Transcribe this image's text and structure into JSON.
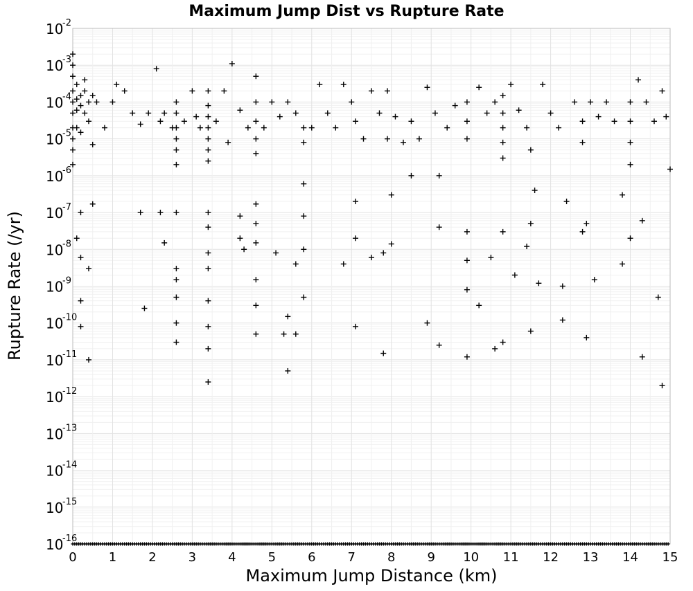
{
  "chart_data": {
    "type": "scatter",
    "title": "Maximum Jump Dist vs Rupture Rate",
    "xlabel": "Maximum Jump Distance (km)",
    "ylabel": "Rupture Rate (/yr)",
    "xlim": [
      0,
      15
    ],
    "ylim": [
      1e-16,
      0.01
    ],
    "yscale": "log",
    "grid": true,
    "x_ticks": [
      "0",
      "1",
      "2",
      "3",
      "4",
      "5",
      "6",
      "7",
      "8",
      "9",
      "10",
      "11",
      "12",
      "13",
      "14",
      "15"
    ],
    "y_ticks": [
      {
        "base": "10",
        "exp": "-2"
      },
      {
        "base": "10",
        "exp": "-3"
      },
      {
        "base": "10",
        "exp": "-4"
      },
      {
        "base": "10",
        "exp": "-5"
      },
      {
        "base": "10",
        "exp": "-6"
      },
      {
        "base": "10",
        "exp": "-7"
      },
      {
        "base": "10",
        "exp": "-8"
      },
      {
        "base": "10",
        "exp": "-9"
      },
      {
        "base": "10",
        "exp": "-10"
      },
      {
        "base": "10",
        "exp": "-11"
      },
      {
        "base": "10",
        "exp": "-12"
      },
      {
        "base": "10",
        "exp": "-13"
      },
      {
        "base": "10",
        "exp": "-14"
      },
      {
        "base": "10",
        "exp": "-15"
      },
      {
        "base": "10",
        "exp": "-16"
      }
    ],
    "marker": "+",
    "marker_color": "#000000",
    "series": [
      {
        "points": [
          [
            0,
            0.002
          ],
          [
            0,
            0.001
          ],
          [
            0,
            0.0005
          ],
          [
            0,
            0.0002
          ],
          [
            0,
            0.0001
          ],
          [
            0,
            5e-05
          ],
          [
            0,
            2e-05
          ],
          [
            0,
            1e-05
          ],
          [
            0,
            5e-06
          ],
          [
            0,
            2e-06
          ],
          [
            0.1,
            0.0003
          ],
          [
            0.1,
            0.00012
          ],
          [
            0.1,
            6e-05
          ],
          [
            0.1,
            2e-05
          ],
          [
            0.2,
            0.00015
          ],
          [
            0.2,
            8e-05
          ],
          [
            0.2,
            1.5e-05
          ],
          [
            0.3,
            0.0004
          ],
          [
            0.3,
            0.0002
          ],
          [
            0.3,
            5e-05
          ],
          [
            0.4,
            0.0001
          ],
          [
            0.4,
            3e-05
          ],
          [
            0.5,
            0.00015
          ],
          [
            0.5,
            7e-06
          ],
          [
            0.6,
            0.0001
          ],
          [
            0.8,
            2e-05
          ],
          [
            1.0,
            0.0001
          ],
          [
            1.1,
            0.0003
          ],
          [
            1.3,
            0.0002
          ],
          [
            1.5,
            5e-05
          ],
          [
            1.7,
            2.5e-05
          ],
          [
            1.9,
            5e-05
          ],
          [
            2.1,
            0.0008
          ],
          [
            2.2,
            3e-05
          ],
          [
            2.3,
            5e-05
          ],
          [
            2.5,
            2e-05
          ],
          [
            2.6,
            0.0001
          ],
          [
            2.6,
            5e-05
          ],
          [
            2.6,
            2e-05
          ],
          [
            2.6,
            1e-05
          ],
          [
            2.6,
            5e-06
          ],
          [
            2.6,
            2e-06
          ],
          [
            2.8,
            3e-05
          ],
          [
            3.0,
            0.0002
          ],
          [
            3.1,
            4e-05
          ],
          [
            3.2,
            2e-05
          ],
          [
            3.4,
            0.0002
          ],
          [
            3.4,
            8e-05
          ],
          [
            3.4,
            4e-05
          ],
          [
            3.4,
            2e-05
          ],
          [
            3.4,
            1e-05
          ],
          [
            3.4,
            5e-06
          ],
          [
            3.4,
            2.5e-06
          ],
          [
            3.6,
            3e-05
          ],
          [
            3.8,
            0.0002
          ],
          [
            3.9,
            8e-06
          ],
          [
            4.0,
            0.0011
          ],
          [
            4.2,
            6e-05
          ],
          [
            4.4,
            2e-05
          ],
          [
            4.6,
            0.0005
          ],
          [
            4.6,
            0.0001
          ],
          [
            4.6,
            3e-05
          ],
          [
            4.6,
            1e-05
          ],
          [
            4.6,
            4e-06
          ],
          [
            4.8,
            2e-05
          ],
          [
            5.0,
            0.0001
          ],
          [
            5.2,
            4e-05
          ],
          [
            5.4,
            0.0001
          ],
          [
            5.6,
            5e-05
          ],
          [
            5.8,
            2e-05
          ],
          [
            5.8,
            8e-06
          ],
          [
            5.8,
            6e-07
          ],
          [
            6.0,
            2e-05
          ],
          [
            6.2,
            0.0003
          ],
          [
            6.4,
            5e-05
          ],
          [
            6.6,
            2e-05
          ],
          [
            6.8,
            0.0003
          ],
          [
            7.0,
            0.0001
          ],
          [
            7.1,
            3e-05
          ],
          [
            7.3,
            1e-05
          ],
          [
            7.5,
            0.0002
          ],
          [
            7.7,
            5e-05
          ],
          [
            7.9,
            0.0002
          ],
          [
            7.9,
            1e-05
          ],
          [
            8.1,
            4e-05
          ],
          [
            8.3,
            8e-06
          ],
          [
            8.5,
            3e-05
          ],
          [
            8.5,
            1e-06
          ],
          [
            8.7,
            1e-05
          ],
          [
            8.9,
            0.00025
          ],
          [
            9.1,
            5e-05
          ],
          [
            9.2,
            1e-06
          ],
          [
            9.4,
            2e-05
          ],
          [
            9.6,
            8e-05
          ],
          [
            9.9,
            0.0001
          ],
          [
            9.9,
            3e-05
          ],
          [
            9.9,
            1e-05
          ],
          [
            10.2,
            0.00025
          ],
          [
            10.4,
            5e-05
          ],
          [
            10.6,
            0.0001
          ],
          [
            10.8,
            0.00015
          ],
          [
            10.8,
            5e-05
          ],
          [
            10.8,
            2e-05
          ],
          [
            10.8,
            8e-06
          ],
          [
            10.8,
            3e-06
          ],
          [
            11.0,
            0.0003
          ],
          [
            11.2,
            6e-05
          ],
          [
            11.4,
            2e-05
          ],
          [
            11.5,
            5e-06
          ],
          [
            11.6,
            4e-07
          ],
          [
            11.8,
            0.0003
          ],
          [
            12.0,
            5e-05
          ],
          [
            12.2,
            2e-05
          ],
          [
            12.4,
            2e-07
          ],
          [
            12.6,
            0.0001
          ],
          [
            12.8,
            3e-05
          ],
          [
            12.8,
            8e-06
          ],
          [
            13.0,
            0.0001
          ],
          [
            13.2,
            4e-05
          ],
          [
            13.4,
            0.0001
          ],
          [
            13.6,
            3e-05
          ],
          [
            13.8,
            3e-07
          ],
          [
            14.0,
            0.0001
          ],
          [
            14.0,
            3e-05
          ],
          [
            14.0,
            8e-06
          ],
          [
            14.0,
            2e-06
          ],
          [
            14.2,
            0.0004
          ],
          [
            14.4,
            0.0001
          ],
          [
            14.6,
            3e-05
          ],
          [
            14.8,
            0.0002
          ],
          [
            14.9,
            4e-05
          ],
          [
            15.0,
            1.5e-06
          ],
          [
            0.2,
            1e-07
          ],
          [
            0.5,
            1.7e-07
          ],
          [
            1.7,
            1e-07
          ],
          [
            2.2,
            1e-07
          ],
          [
            2.6,
            1e-07
          ],
          [
            3.4,
            1e-07
          ],
          [
            4.2,
            8e-08
          ],
          [
            4.6,
            1.7e-07
          ],
          [
            4.6,
            5e-08
          ],
          [
            5.8,
            8e-08
          ],
          [
            7.1,
            2e-07
          ],
          [
            8.0,
            3e-07
          ],
          [
            11.5,
            5e-08
          ],
          [
            12.9,
            5e-08
          ],
          [
            14.3,
            6e-08
          ],
          [
            0.1,
            2e-08
          ],
          [
            0.2,
            6e-09
          ],
          [
            0.4,
            3e-09
          ],
          [
            2.3,
            1.5e-08
          ],
          [
            2.6,
            3e-09
          ],
          [
            2.6,
            1.5e-09
          ],
          [
            3.4,
            4e-08
          ],
          [
            3.4,
            8e-09
          ],
          [
            3.4,
            3e-09
          ],
          [
            4.2,
            2e-08
          ],
          [
            4.3,
            1e-08
          ],
          [
            4.6,
            1.5e-08
          ],
          [
            4.6,
            1.5e-09
          ],
          [
            5.1,
            8e-09
          ],
          [
            5.6,
            4e-09
          ],
          [
            5.8,
            1e-08
          ],
          [
            6.8,
            4e-09
          ],
          [
            7.1,
            2e-08
          ],
          [
            7.5,
            6e-09
          ],
          [
            7.8,
            8e-09
          ],
          [
            8.0,
            1.4e-08
          ],
          [
            9.2,
            4e-08
          ],
          [
            9.9,
            3e-08
          ],
          [
            9.9,
            5e-09
          ],
          [
            10.5,
            6e-09
          ],
          [
            10.8,
            3e-08
          ],
          [
            11.1,
            2e-09
          ],
          [
            11.4,
            1.2e-08
          ],
          [
            11.7,
            1.2e-09
          ],
          [
            12.3,
            1e-09
          ],
          [
            12.8,
            3e-08
          ],
          [
            13.1,
            1.5e-09
          ],
          [
            13.8,
            4e-09
          ],
          [
            14.0,
            2e-08
          ],
          [
            0.2,
            4e-10
          ],
          [
            0.2,
            8e-11
          ],
          [
            1.8,
            2.5e-10
          ],
          [
            2.6,
            5e-10
          ],
          [
            2.6,
            1e-10
          ],
          [
            2.6,
            3e-11
          ],
          [
            3.4,
            4e-10
          ],
          [
            3.4,
            8e-11
          ],
          [
            3.4,
            2e-11
          ],
          [
            4.6,
            3e-10
          ],
          [
            4.6,
            5e-11
          ],
          [
            5.3,
            5e-11
          ],
          [
            5.4,
            1.5e-10
          ],
          [
            5.6,
            5e-11
          ],
          [
            5.8,
            5e-10
          ],
          [
            7.1,
            8e-11
          ],
          [
            8.9,
            1e-10
          ],
          [
            9.2,
            2.5e-11
          ],
          [
            9.9,
            8e-10
          ],
          [
            10.2,
            3e-10
          ],
          [
            10.6,
            2e-11
          ],
          [
            10.8,
            3e-11
          ],
          [
            11.5,
            6e-11
          ],
          [
            12.3,
            1.2e-10
          ],
          [
            12.9,
            4e-11
          ],
          [
            14.7,
            5e-10
          ],
          [
            0.4,
            1e-11
          ],
          [
            3.4,
            2.5e-12
          ],
          [
            5.4,
            5e-12
          ],
          [
            7.8,
            1.5e-11
          ],
          [
            9.9,
            1.2e-11
          ],
          [
            14.3,
            1.2e-11
          ],
          [
            14.8,
            2e-12
          ]
        ]
      }
    ],
    "baseline_cluster": {
      "y": 1e-16,
      "x_range": [
        0,
        15
      ],
      "note": ""
    }
  }
}
